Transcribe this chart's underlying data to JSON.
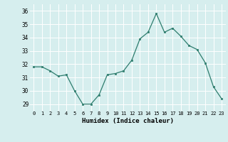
{
  "x": [
    0,
    1,
    2,
    3,
    4,
    5,
    6,
    7,
    8,
    9,
    10,
    11,
    12,
    13,
    14,
    15,
    16,
    17,
    18,
    19,
    20,
    21,
    22,
    23
  ],
  "y": [
    31.8,
    31.8,
    31.5,
    31.1,
    31.2,
    30.0,
    29.0,
    29.0,
    29.7,
    31.2,
    31.3,
    31.5,
    32.3,
    33.9,
    34.4,
    35.8,
    34.4,
    34.7,
    34.1,
    33.4,
    33.1,
    32.1,
    30.3,
    29.4
  ],
  "xlabel": "Humidex (Indice chaleur)",
  "ylim": [
    28.5,
    36.5
  ],
  "xlim": [
    -0.5,
    23.5
  ],
  "yticks": [
    29,
    30,
    31,
    32,
    33,
    34,
    35,
    36
  ],
  "xticks": [
    0,
    1,
    2,
    3,
    4,
    5,
    6,
    7,
    8,
    9,
    10,
    11,
    12,
    13,
    14,
    15,
    16,
    17,
    18,
    19,
    20,
    21,
    22,
    23
  ],
  "line_color": "#2e7d6e",
  "marker_color": "#2e7d6e",
  "bg_color": "#d6eeee",
  "grid_color": "#ffffff"
}
